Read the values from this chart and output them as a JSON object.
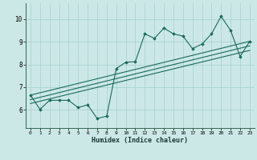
{
  "xlabel": "Humidex (Indice chaleur)",
  "ylabel": "",
  "xlim": [
    -0.5,
    23.5
  ],
  "ylim": [
    5.2,
    10.7
  ],
  "xticks": [
    0,
    1,
    2,
    3,
    4,
    5,
    6,
    7,
    8,
    9,
    10,
    11,
    12,
    13,
    14,
    15,
    16,
    17,
    18,
    19,
    20,
    21,
    22,
    23
  ],
  "yticks": [
    6,
    7,
    8,
    9,
    10
  ],
  "bg_color": "#cce8e6",
  "grid_color": "#aad4d2",
  "line_color": "#1a6b5a",
  "x_data": [
    0,
    1,
    2,
    3,
    4,
    5,
    6,
    7,
    8,
    9,
    10,
    11,
    12,
    13,
    14,
    15,
    16,
    17,
    18,
    19,
    20,
    21,
    22,
    23
  ],
  "y_data": [
    6.65,
    6.02,
    6.42,
    6.42,
    6.42,
    6.1,
    6.22,
    5.62,
    5.72,
    7.82,
    8.1,
    8.12,
    9.35,
    9.15,
    9.6,
    9.35,
    9.25,
    8.7,
    8.9,
    9.35,
    10.12,
    9.5,
    8.35,
    9.02
  ],
  "trend1_x": [
    0,
    23
  ],
  "trend1_y": [
    6.65,
    9.02
  ],
  "trend2_x": [
    0,
    23
  ],
  "trend2_y": [
    6.45,
    8.82
  ],
  "trend3_x": [
    0,
    23
  ],
  "trend3_y": [
    6.28,
    8.62
  ]
}
